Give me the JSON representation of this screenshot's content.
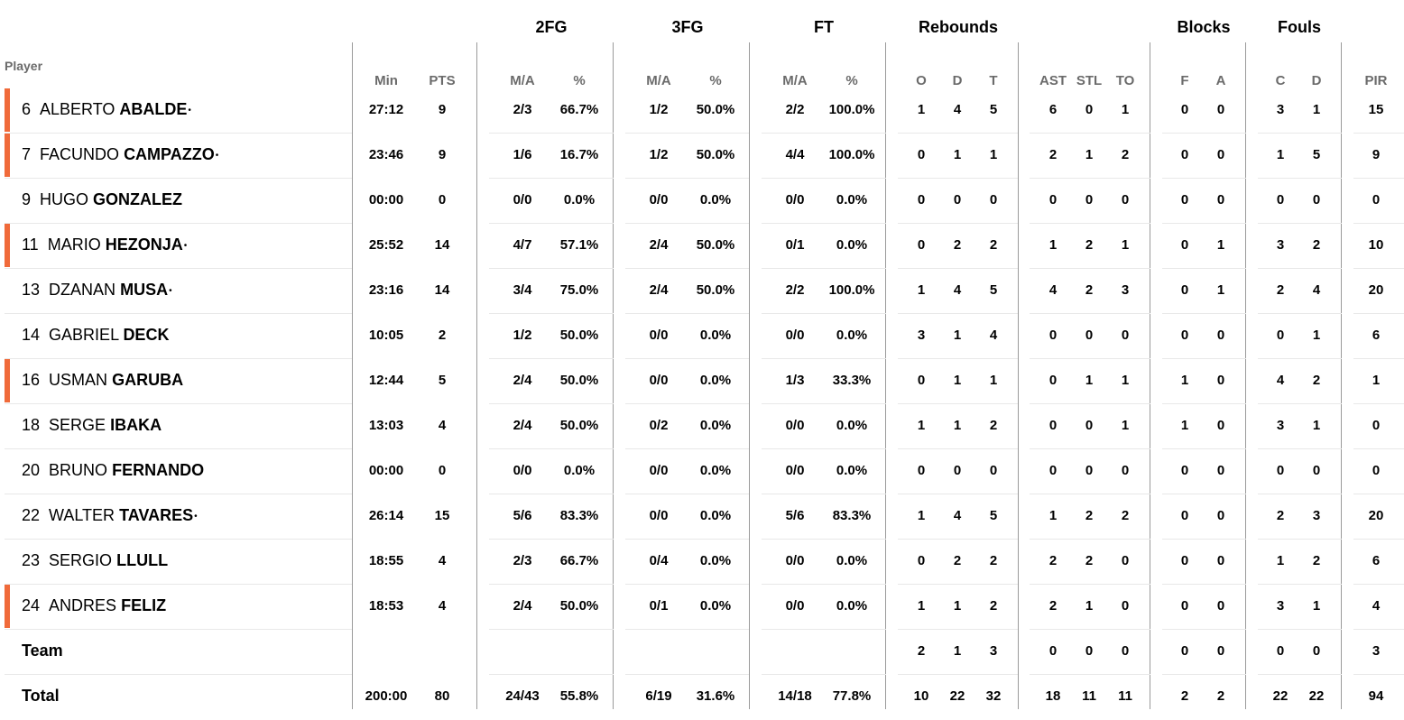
{
  "header": {
    "player_label": "Player",
    "groups": [
      "2FG",
      "3FG",
      "FT",
      "Rebounds",
      "Blocks",
      "Fouls"
    ],
    "columns": [
      "Min",
      "PTS",
      "M/A",
      "%",
      "M/A",
      "%",
      "M/A",
      "%",
      "O",
      "D",
      "T",
      "AST",
      "STL",
      "TO",
      "F",
      "A",
      "C",
      "D",
      "PIR"
    ]
  },
  "players": [
    {
      "number": "6",
      "first": "ALBERTO",
      "last": "ABALDE",
      "starter": true,
      "stats": [
        "27:12",
        "9",
        "2/3",
        "66.7%",
        "1/2",
        "50.0%",
        "2/2",
        "100.0%",
        "1",
        "4",
        "5",
        "6",
        "0",
        "1",
        "0",
        "0",
        "3",
        "1",
        "15"
      ]
    },
    {
      "number": "7",
      "first": "FACUNDO",
      "last": "CAMPAZZO",
      "starter": true,
      "stats": [
        "23:46",
        "9",
        "1/6",
        "16.7%",
        "1/2",
        "50.0%",
        "4/4",
        "100.0%",
        "0",
        "1",
        "1",
        "2",
        "1",
        "2",
        "0",
        "0",
        "1",
        "5",
        "9"
      ]
    },
    {
      "number": "9",
      "first": "HUGO",
      "last": "GONZALEZ",
      "starter": false,
      "stats": [
        "00:00",
        "0",
        "0/0",
        "0.0%",
        "0/0",
        "0.0%",
        "0/0",
        "0.0%",
        "0",
        "0",
        "0",
        "0",
        "0",
        "0",
        "0",
        "0",
        "0",
        "0",
        "0"
      ]
    },
    {
      "number": "11",
      "first": "MARIO",
      "last": "HEZONJA",
      "starter": true,
      "stats": [
        "25:52",
        "14",
        "4/7",
        "57.1%",
        "2/4",
        "50.0%",
        "0/1",
        "0.0%",
        "0",
        "2",
        "2",
        "1",
        "2",
        "1",
        "0",
        "1",
        "3",
        "2",
        "10"
      ]
    },
    {
      "number": "13",
      "first": "DZANAN",
      "last": "MUSA",
      "starter": false,
      "stats": [
        "23:16",
        "14",
        "3/4",
        "75.0%",
        "2/4",
        "50.0%",
        "2/2",
        "100.0%",
        "1",
        "4",
        "5",
        "4",
        "2",
        "3",
        "0",
        "1",
        "2",
        "4",
        "20"
      ]
    },
    {
      "number": "14",
      "first": "GABRIEL",
      "last": "DECK",
      "starter": false,
      "stats": [
        "10:05",
        "2",
        "1/2",
        "50.0%",
        "0/0",
        "0.0%",
        "0/0",
        "0.0%",
        "3",
        "1",
        "4",
        "0",
        "0",
        "0",
        "0",
        "0",
        "0",
        "1",
        "6"
      ]
    },
    {
      "number": "16",
      "first": "USMAN",
      "last": "GARUBA",
      "starter": true,
      "stats": [
        "12:44",
        "5",
        "2/4",
        "50.0%",
        "0/0",
        "0.0%",
        "1/3",
        "33.3%",
        "0",
        "1",
        "1",
        "0",
        "1",
        "1",
        "1",
        "0",
        "4",
        "2",
        "1"
      ]
    },
    {
      "number": "18",
      "first": "SERGE",
      "last": "IBAKA",
      "starter": false,
      "stats": [
        "13:03",
        "4",
        "2/4",
        "50.0%",
        "0/2",
        "0.0%",
        "0/0",
        "0.0%",
        "1",
        "1",
        "2",
        "0",
        "0",
        "1",
        "1",
        "0",
        "3",
        "1",
        "0"
      ]
    },
    {
      "number": "20",
      "first": "BRUNO",
      "last": "FERNANDO",
      "starter": false,
      "stats": [
        "00:00",
        "0",
        "0/0",
        "0.0%",
        "0/0",
        "0.0%",
        "0/0",
        "0.0%",
        "0",
        "0",
        "0",
        "0",
        "0",
        "0",
        "0",
        "0",
        "0",
        "0",
        "0"
      ]
    },
    {
      "number": "22",
      "first": "WALTER",
      "last": "TAVARES",
      "starter": false,
      "stats": [
        "26:14",
        "15",
        "5/6",
        "83.3%",
        "0/0",
        "0.0%",
        "5/6",
        "83.3%",
        "1",
        "4",
        "5",
        "1",
        "2",
        "2",
        "0",
        "0",
        "2",
        "3",
        "20"
      ]
    },
    {
      "number": "23",
      "first": "SERGIO",
      "last": "LLULL",
      "starter": false,
      "stats": [
        "18:55",
        "4",
        "2/3",
        "66.7%",
        "0/4",
        "0.0%",
        "0/0",
        "0.0%",
        "0",
        "2",
        "2",
        "2",
        "2",
        "0",
        "0",
        "0",
        "1",
        "2",
        "6"
      ]
    },
    {
      "number": "24",
      "first": "ANDRES",
      "last": "FELIZ",
      "starter": true,
      "stats": [
        "18:53",
        "4",
        "2/4",
        "50.0%",
        "0/1",
        "0.0%",
        "0/0",
        "0.0%",
        "1",
        "1",
        "2",
        "2",
        "1",
        "0",
        "0",
        "0",
        "3",
        "1",
        "4"
      ]
    }
  ],
  "star_markers": [
    "ABALDE",
    "CAMPAZZO",
    "HEZONJA",
    "MUSA",
    "TAVARES"
  ],
  "team": {
    "label": "Team",
    "stats": [
      "",
      "",
      "",
      "",
      "",
      "",
      "",
      "",
      "2",
      "1",
      "3",
      "0",
      "0",
      "0",
      "0",
      "0",
      "0",
      "0",
      "3"
    ]
  },
  "total": {
    "label": "Total",
    "stats": [
      "200:00",
      "80",
      "24/43",
      "55.8%",
      "6/19",
      "31.6%",
      "14/18",
      "77.8%",
      "10",
      "22",
      "32",
      "18",
      "11",
      "11",
      "2",
      "2",
      "22",
      "22",
      "94"
    ]
  },
  "colors": {
    "starter_bar": "#f06a3a",
    "header_text": "#6b6b6b",
    "divider": "#9a9a9a",
    "row_separator": "#e8e8e8"
  },
  "star_glyph": "•"
}
